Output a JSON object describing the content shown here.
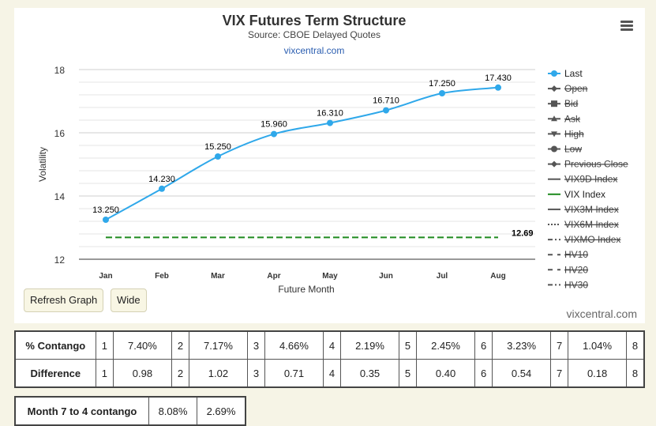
{
  "chart": {
    "title": "VIX Futures Term Structure",
    "subtitle": "Source: CBOE Delayed Quotes",
    "link": "vixcentral.com",
    "watermark": "vixcentral.com",
    "menu_icon": "hamburger-menu-icon"
  },
  "chart_data": {
    "type": "line",
    "categories": [
      "Jan",
      "Feb",
      "Mar",
      "Apr",
      "May",
      "Jun",
      "Jul",
      "Aug"
    ],
    "series": [
      {
        "name": "Last",
        "values": [
          13.25,
          14.23,
          15.25,
          15.96,
          16.31,
          16.71,
          17.25,
          17.43
        ],
        "labels": [
          "13.250",
          "14.230",
          "15.250",
          "15.960",
          "16.310",
          "16.710",
          "17.250",
          "17.430"
        ],
        "color": "#2fa8ea"
      },
      {
        "name": "VIX Index",
        "value": 12.69,
        "label": "12.69",
        "color": "#1e8a1e"
      }
    ],
    "xlabel": "Future Month",
    "ylabel": "Volatility",
    "ylim": [
      12,
      18
    ],
    "yticks": [
      "12",
      "14",
      "16",
      "18"
    ],
    "grid": true,
    "legend_position": "right",
    "legend": [
      {
        "name": "Last",
        "marker": "circle",
        "active": true,
        "color": "#2fa8ea"
      },
      {
        "name": "Open",
        "marker": "diamond",
        "active": false
      },
      {
        "name": "Bid",
        "marker": "square",
        "active": false
      },
      {
        "name": "Ask",
        "marker": "triangle",
        "active": false
      },
      {
        "name": "High",
        "marker": "triangle-down",
        "active": false
      },
      {
        "name": "Low",
        "marker": "circle",
        "active": false
      },
      {
        "name": "Previous Close",
        "marker": "diamond",
        "active": false
      },
      {
        "name": "VIX9D Index",
        "marker": "solid",
        "active": false
      },
      {
        "name": "VIX Index",
        "marker": "solid",
        "active": true,
        "color": "#1e8a1e"
      },
      {
        "name": "VIX3M Index",
        "marker": "solid",
        "active": false
      },
      {
        "name": "VIX6M Index",
        "marker": "dotted",
        "active": false
      },
      {
        "name": "VIXMO Index",
        "marker": "dashdot",
        "active": false
      },
      {
        "name": "HV10",
        "marker": "dashed",
        "active": false
      },
      {
        "name": "HV20",
        "marker": "dashed",
        "active": false
      },
      {
        "name": "HV30",
        "marker": "dashdot",
        "active": false
      }
    ]
  },
  "buttons": {
    "refresh": "Refresh Graph",
    "wide": "Wide"
  },
  "contango_table": {
    "rows": [
      {
        "label": "% Contango",
        "cells": [
          "1",
          "7.40%",
          "2",
          "7.17%",
          "3",
          "4.66%",
          "4",
          "2.19%",
          "5",
          "2.45%",
          "6",
          "3.23%",
          "7",
          "1.04%",
          "8"
        ]
      },
      {
        "label": "Difference",
        "cells": [
          "1",
          "0.98",
          "2",
          "1.02",
          "3",
          "0.71",
          "4",
          "0.35",
          "5",
          "0.40",
          "6",
          "0.54",
          "7",
          "0.18",
          "8"
        ]
      }
    ]
  },
  "month_table": {
    "label": "Month 7 to 4 contango",
    "values": [
      "8.08%",
      "2.69%"
    ]
  }
}
